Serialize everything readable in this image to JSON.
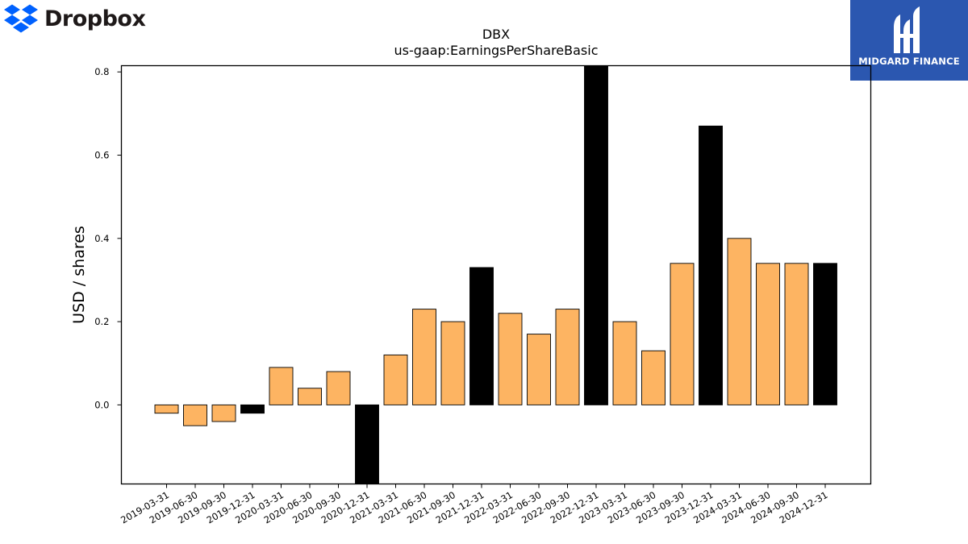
{
  "brand": {
    "name": "Dropbox",
    "icon": "dropbox-logo-icon",
    "color": "#0061fe"
  },
  "sponsor": {
    "name": "MIDGARD FINANCE",
    "background": "#2b57b0"
  },
  "chart_data": {
    "type": "bar",
    "title": "DBX",
    "subtitle": "us-gaap:EarningsPerShareBasic",
    "xlabel": "",
    "ylabel": "USD / shares",
    "ylim": [
      -0.19,
      0.815
    ],
    "yticks": [
      0.0,
      0.2,
      0.4,
      0.6,
      0.8
    ],
    "ytick_labels": [
      "0.0",
      "0.2",
      "0.4",
      "0.6",
      "0.8"
    ],
    "grid": false,
    "colors": {
      "quarter": "#fdb462",
      "year_end": "#000000"
    },
    "categories": [
      "2019-03-31",
      "2019-06-30",
      "2019-09-30",
      "2019-12-31",
      "2020-03-31",
      "2020-06-30",
      "2020-09-30",
      "2020-12-31",
      "2021-03-31",
      "2021-06-30",
      "2021-09-30",
      "2021-12-31",
      "2022-03-31",
      "2022-06-30",
      "2022-09-30",
      "2022-12-31",
      "2023-03-31",
      "2023-06-30",
      "2023-09-30",
      "2023-12-31",
      "2024-03-31",
      "2024-06-30",
      "2024-09-30",
      "2024-12-31"
    ],
    "values": [
      -0.02,
      -0.05,
      -0.04,
      -0.02,
      0.09,
      0.04,
      0.08,
      -0.2,
      0.12,
      0.23,
      0.2,
      0.33,
      0.22,
      0.17,
      0.23,
      0.82,
      0.2,
      0.13,
      0.34,
      0.67,
      0.4,
      0.34,
      0.34,
      0.34
    ]
  }
}
